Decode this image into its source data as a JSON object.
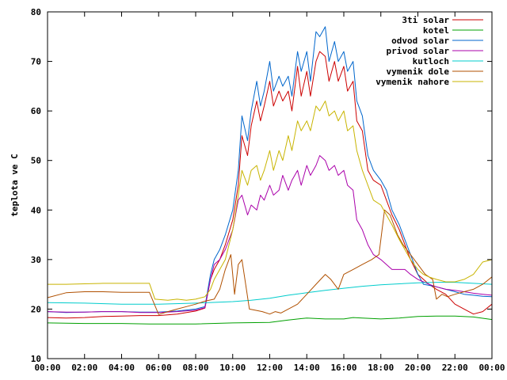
{
  "chart_data": {
    "type": "line",
    "xlabel": "",
    "ylabel": "teplota ve C",
    "ylim": [
      10,
      80
    ],
    "xlim": [
      "00:00",
      "24:00"
    ],
    "x_ticks": [
      "00:00",
      "02:00",
      "04:00",
      "06:00",
      "08:00",
      "10:00",
      "12:00",
      "14:00",
      "16:00",
      "18:00",
      "20:00",
      "22:00",
      "00:00"
    ],
    "y_ticks": [
      10,
      20,
      30,
      40,
      50,
      60,
      70,
      80
    ],
    "grid": false,
    "legend_position": "top-right",
    "x_unit": "hours",
    "series": [
      {
        "name": "3ti solar",
        "color": "#cc0000",
        "x": [
          0,
          1,
          2,
          3,
          4,
          5,
          6,
          7,
          8,
          8.5,
          8.8,
          9,
          9.3,
          9.6,
          10,
          10.3,
          10.5,
          10.8,
          11,
          11.3,
          11.5,
          11.7,
          12,
          12.2,
          12.5,
          12.7,
          13,
          13.2,
          13.5,
          13.7,
          14,
          14.2,
          14.5,
          14.7,
          15,
          15.2,
          15.5,
          15.7,
          16,
          16.2,
          16.5,
          16.7,
          17,
          17.3,
          17.6,
          18,
          18.3,
          18.6,
          19,
          19.3,
          19.6,
          20,
          20.3,
          20.6,
          21,
          21.5,
          22,
          22.5,
          23,
          23.5,
          24
        ],
        "y": [
          18.3,
          18.2,
          18.3,
          18.5,
          18.6,
          18.7,
          18.7,
          19.0,
          19.6,
          20.2,
          26,
          28,
          30,
          33,
          38,
          45,
          55,
          51,
          57,
          62,
          58,
          61,
          66,
          61,
          64,
          62,
          64,
          60,
          69,
          63,
          68,
          63,
          70,
          72,
          71,
          66,
          70,
          66,
          69,
          64,
          66,
          58,
          56,
          48,
          46,
          45,
          42,
          39,
          36,
          33,
          30,
          27,
          26,
          25,
          24,
          23,
          21,
          20,
          19,
          19.5,
          21
        ]
      },
      {
        "name": "kotel",
        "color": "#00a000",
        "x": [
          0,
          2,
          4,
          5.5,
          6,
          8,
          10,
          12,
          13,
          14,
          15,
          16,
          16.5,
          17,
          18,
          19,
          20,
          21,
          22,
          23,
          24
        ],
        "y": [
          17.2,
          17.1,
          17.1,
          17.0,
          17.0,
          17.0,
          17.2,
          17.3,
          17.8,
          18.2,
          18.0,
          18.0,
          18.3,
          18.2,
          18.0,
          18.2,
          18.5,
          18.6,
          18.6,
          18.4,
          17.9
        ]
      },
      {
        "name": "odvod solar",
        "color": "#0066cc",
        "x": [
          0,
          1,
          2,
          3,
          4,
          5,
          6,
          7,
          8,
          8.5,
          8.8,
          9,
          9.3,
          9.6,
          10,
          10.3,
          10.5,
          10.8,
          11,
          11.3,
          11.5,
          11.7,
          12,
          12.2,
          12.5,
          12.7,
          13,
          13.2,
          13.5,
          13.7,
          14,
          14.2,
          14.5,
          14.7,
          15,
          15.2,
          15.5,
          15.7,
          16,
          16.2,
          16.5,
          16.7,
          17,
          17.3,
          17.6,
          18,
          18.3,
          18.6,
          19,
          19.3,
          19.6,
          20,
          20.3,
          20.6,
          21,
          21.5,
          22,
          22.5,
          23,
          23.5,
          24
        ],
        "y": [
          19.5,
          19.3,
          19.4,
          19.5,
          19.5,
          19.4,
          19.4,
          19.6,
          20.0,
          20.5,
          27,
          30,
          32,
          35,
          40,
          48,
          59,
          54,
          60,
          66,
          61,
          64,
          70,
          64,
          67,
          65,
          67,
          63,
          72,
          68,
          72,
          66,
          76,
          75,
          77,
          70,
          74,
          70,
          72,
          68,
          70,
          62,
          59,
          51,
          48,
          46,
          44,
          40,
          37,
          34,
          31,
          27,
          25,
          24.8,
          24.5,
          24,
          23.5,
          23,
          22.8,
          22.6,
          22.5
        ]
      },
      {
        "name": "privod solar",
        "color": "#aa00aa",
        "x": [
          0,
          1,
          2,
          3,
          4,
          5,
          6,
          7,
          8,
          8.5,
          8.8,
          9,
          9.3,
          9.6,
          10,
          10.3,
          10.5,
          10.8,
          11,
          11.3,
          11.5,
          11.7,
          12,
          12.2,
          12.5,
          12.7,
          13,
          13.2,
          13.5,
          13.7,
          14,
          14.2,
          14.5,
          14.7,
          15,
          15.2,
          15.5,
          15.7,
          16,
          16.2,
          16.5,
          16.7,
          17,
          17.3,
          17.6,
          18,
          18.3,
          18.6,
          19,
          19.3,
          19.6,
          20,
          20.3,
          20.6,
          21,
          21.5,
          22,
          22.5,
          23,
          23.5,
          24
        ],
        "y": [
          19.5,
          19.4,
          19.4,
          19.5,
          19.5,
          19.3,
          19.3,
          19.5,
          19.8,
          20.3,
          26,
          29,
          30,
          32,
          36,
          42,
          43,
          39,
          41,
          40,
          43,
          42,
          45,
          43,
          44,
          47,
          44,
          46,
          48,
          45,
          49,
          47,
          49,
          51,
          50,
          48,
          49,
          47,
          48,
          45,
          44,
          38,
          36,
          33,
          31,
          30,
          29,
          28,
          28,
          28,
          27,
          26,
          25.5,
          25,
          24.5,
          24,
          23.8,
          23.5,
          23.2,
          23,
          22.8
        ]
      },
      {
        "name": "kutloch",
        "color": "#00cccc",
        "x": [
          0,
          2,
          4,
          6,
          8,
          10,
          11,
          12,
          13,
          14,
          15,
          16,
          17,
          18,
          19,
          20,
          21,
          22,
          23,
          24
        ],
        "y": [
          21.3,
          21.2,
          21.0,
          21.0,
          21.2,
          21.5,
          21.8,
          22.2,
          22.8,
          23.3,
          23.8,
          24.2,
          24.6,
          24.9,
          25.1,
          25.3,
          25.4,
          25.4,
          25.2,
          25.0
        ]
      },
      {
        "name": "vymenik dole",
        "color": "#b05000",
        "x": [
          0,
          1,
          2,
          3,
          4,
          5,
          5.5,
          6,
          6.5,
          7,
          7.5,
          8,
          8.5,
          9,
          9.3,
          9.6,
          9.9,
          10.1,
          10.3,
          10.5,
          10.7,
          10.9,
          11.2,
          11.6,
          12,
          12.3,
          12.6,
          13,
          13.5,
          14,
          14.5,
          15,
          15.3,
          15.7,
          16,
          16.5,
          17,
          17.5,
          17.9,
          18.2,
          18.5,
          18.9,
          19.2,
          19.6,
          20,
          20.4,
          20.8,
          21,
          21.3,
          21.6,
          22,
          22.5,
          23,
          23.5,
          24
        ],
        "y": [
          22.3,
          23.3,
          23.5,
          23.5,
          23.4,
          23.4,
          23.4,
          18.9,
          19.5,
          20.0,
          20.5,
          21,
          21.6,
          22,
          24,
          28,
          31,
          23,
          29,
          30,
          25,
          20,
          19.8,
          19.5,
          19.0,
          19.5,
          19.2,
          20,
          21,
          23,
          25,
          27,
          26,
          24,
          27,
          28,
          29,
          30,
          31,
          40,
          39,
          35,
          33,
          31,
          29,
          27,
          26,
          22,
          23,
          22.5,
          23,
          23.5,
          24,
          25,
          26.5
        ]
      },
      {
        "name": "vymenik nahore",
        "color": "#c8b400",
        "x": [
          0,
          1,
          2,
          3,
          4,
          5,
          5.5,
          5.8,
          6.5,
          7,
          7.5,
          8,
          8.5,
          8.8,
          9,
          9.3,
          9.6,
          10,
          10.3,
          10.5,
          10.8,
          11,
          11.3,
          11.5,
          11.7,
          12,
          12.2,
          12.5,
          12.7,
          13,
          13.2,
          13.5,
          13.7,
          14,
          14.2,
          14.5,
          14.7,
          15,
          15.2,
          15.5,
          15.7,
          16,
          16.2,
          16.5,
          16.7,
          17,
          17.3,
          17.6,
          18,
          18.3,
          18.6,
          19,
          19.3,
          19.6,
          20,
          20.3,
          20.6,
          21,
          21.5,
          22,
          22.5,
          23,
          23.5,
          24
        ],
        "y": [
          25,
          25,
          25.1,
          25.2,
          25.2,
          25.2,
          25.2,
          22,
          21.8,
          22,
          21.8,
          22,
          22.5,
          24,
          26,
          28,
          30,
          36,
          43,
          48,
          45,
          48,
          49,
          46,
          48,
          52,
          48,
          52,
          50,
          55,
          52,
          58,
          56,
          58,
          56,
          61,
          60,
          62,
          59,
          60,
          58,
          60,
          56,
          57,
          52,
          48,
          45,
          42,
          41,
          39,
          37,
          34,
          32,
          30,
          28,
          27,
          26.5,
          26,
          25.5,
          25.5,
          26,
          27,
          29.5,
          30
        ]
      }
    ]
  }
}
